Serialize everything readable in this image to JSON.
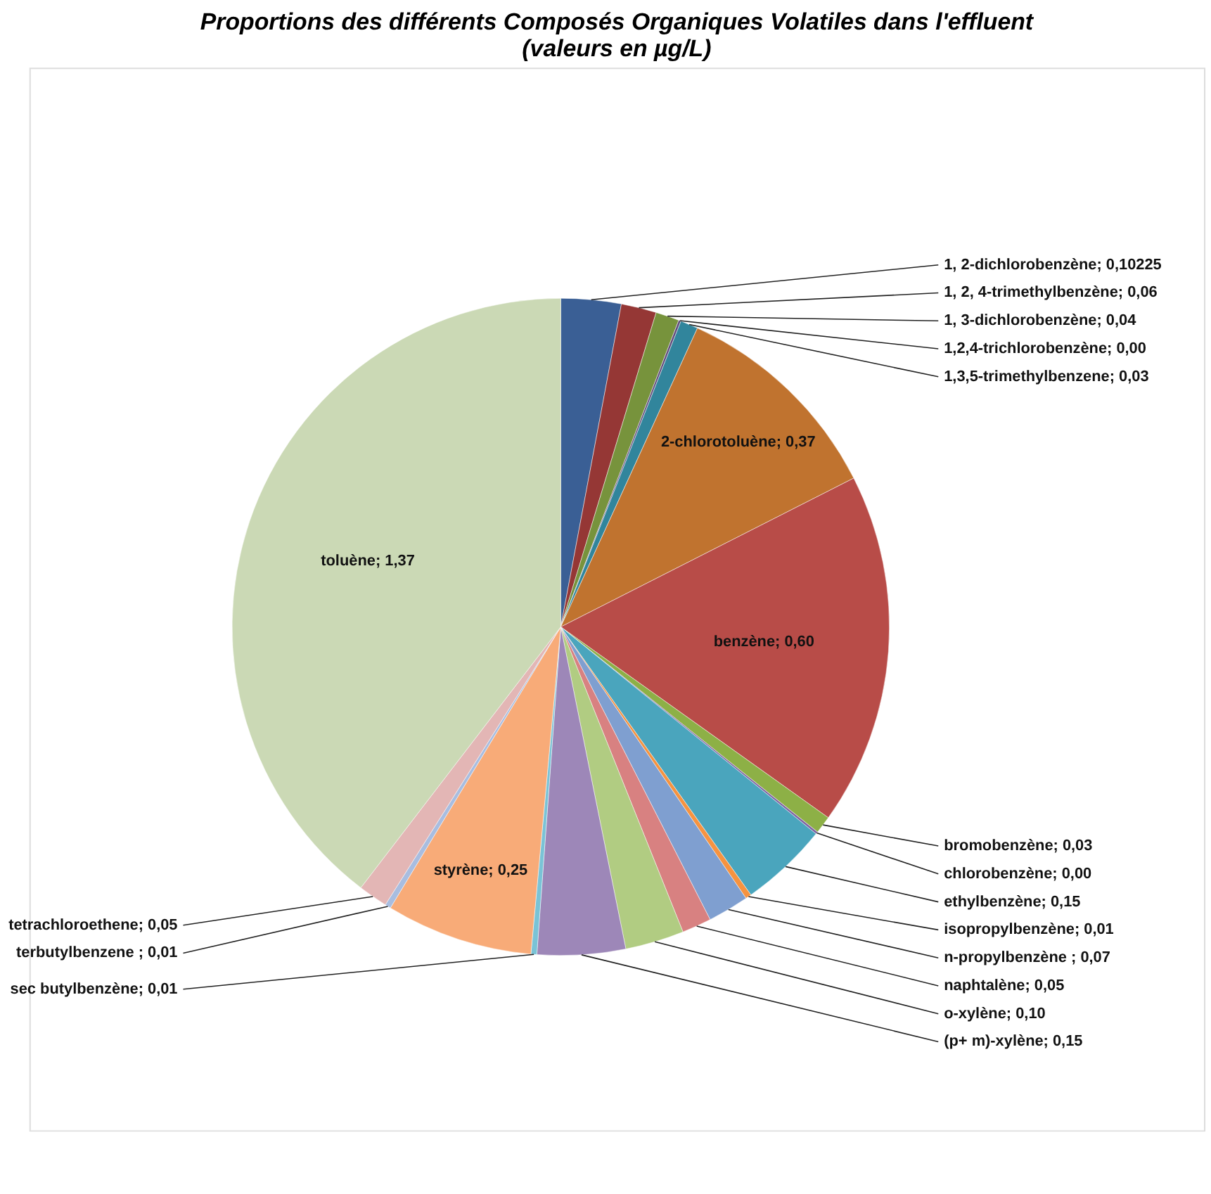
{
  "chart_data": {
    "type": "pie",
    "title": [
      "Proportions des différents Composés Organiques Volatiles dans l'effluent",
      "(valeurs en µg/L)"
    ],
    "categories": [
      "1, 2-dichlorobenzène",
      "1, 2, 4-trimethylbenzène",
      "1, 3-dichlorobenzène",
      "1,2,4-trichlorobenzène",
      "1,3,5-trimethylbenzene",
      "2-chlorotoluène",
      "benzène",
      "bromobenzène",
      "chlorobenzène",
      "ethylbenzène",
      "isopropylbenzène",
      "n-propylbenzène ",
      "naphtalène",
      "o-xylène",
      "(p+ m)-xylène",
      "sec butylbenzène",
      "styrène",
      "terbutylbenzene ",
      "tetrachloroethene",
      "toluène"
    ],
    "values": [
      0.10225,
      0.06,
      0.04,
      0.004,
      0.03,
      0.37,
      0.6,
      0.03,
      0.004,
      0.15,
      0.01,
      0.07,
      0.05,
      0.1,
      0.15,
      0.01,
      0.25,
      0.01,
      0.05,
      1.37
    ],
    "value_labels": [
      "0,10225",
      "0,06",
      "0,04",
      "0,00",
      "0,03",
      "0,37",
      "0,60",
      "0,03",
      "0,00",
      "0,15",
      "0,01",
      "0,07",
      "0,05",
      "0,10",
      "0,15",
      "0,01",
      "0,25",
      "0,01",
      "0,05",
      "1,37"
    ],
    "colors": [
      "#3a5f95",
      "#953735",
      "#77933c",
      "#604a7b",
      "#31859c",
      "#c0732f",
      "#b84c48",
      "#8db046",
      "#8064a2",
      "#4aa5bd",
      "#f69340",
      "#7f9fd0",
      "#d88181",
      "#b1cc82",
      "#9d87b8",
      "#7ac3d6",
      "#f8ab78",
      "#a8bde0",
      "#e3b6b5",
      "#cbd9b5"
    ]
  }
}
